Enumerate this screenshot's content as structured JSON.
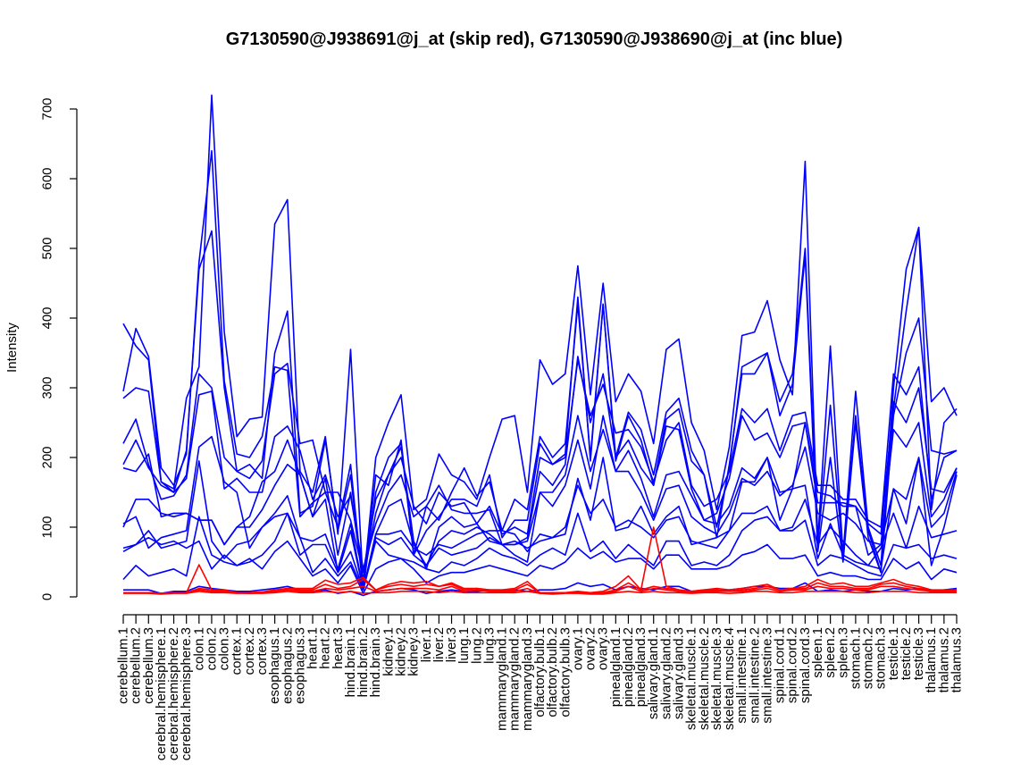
{
  "chart_data": {
    "type": "line",
    "title": "G7130590@J938691@j_at (skip red), G7130590@J938690@j_at (inc blue)",
    "xlabel": "",
    "ylabel": "Intensity",
    "ylim": [
      0,
      715
    ],
    "yticks": [
      0,
      100,
      200,
      300,
      400,
      500,
      600,
      700
    ],
    "grid": false,
    "legend": "none",
    "categories": [
      "cerebellum.1",
      "cerebellum.2",
      "cerebellum.3",
      "cerebral.hemisphere.1",
      "cerebral.hemisphere.2",
      "cerebral.hemisphere.3",
      "colon.1",
      "colon.2",
      "colon.3",
      "cortex.1",
      "cortex.2",
      "cortex.3",
      "esophagus.1",
      "esophagus.2",
      "esophagus.3",
      "heart.1",
      "heart.2",
      "heart.3",
      "hind.brain.1",
      "hind.brain.2",
      "hind.brain.3",
      "kidney.1",
      "kidney.2",
      "kidney.3",
      "liver.1",
      "liver.2",
      "liver.3",
      "lung.1",
      "lung.2",
      "lung.3",
      "mammarygland.1",
      "mammarygland.2",
      "mammarygland.3",
      "olfactory.bulb.1",
      "olfactory.bulb.2",
      "olfactory.bulb.3",
      "ovary.1",
      "ovary.2",
      "ovary.3",
      "pinealgland.1",
      "pinealgland.2",
      "pinealgland.3",
      "salivary.gland.1",
      "salivary.gland.2",
      "salivary.gland.3",
      "skeletal.muscle.1",
      "skeletal.muscle.2",
      "skeletal.muscle.3",
      "skeletal.muscle.4",
      "small.intestine.1",
      "small.intestine.2",
      "small.intestine.3",
      "spinal.cord.1",
      "spinal.cord.2",
      "spinal.cord.3",
      "spleen.1",
      "spleen.2",
      "spleen.3",
      "stomach.1",
      "stomach.2",
      "stomach.3",
      "testicle.1",
      "testicle.2",
      "testicle.3",
      "thalamus.1",
      "thalamus.2",
      "thalamus.3"
    ],
    "series": [
      {
        "color": "#0000ff",
        "values": [
          392,
          360,
          340,
          165,
          155,
          285,
          330,
          720,
          380,
          230,
          255,
          258,
          535,
          570,
          180,
          150,
          230,
          90,
          355,
          15,
          200,
          250,
          290,
          125,
          140,
          205,
          175,
          165,
          140,
          200,
          255,
          260,
          150,
          340,
          305,
          320,
          475,
          290,
          450,
          280,
          320,
          295,
          220,
          355,
          370,
          250,
          210,
          125,
          215,
          375,
          380,
          425,
          340,
          290,
          625,
          80,
          360,
          60,
          295,
          100,
          45,
          300,
          470,
          530,
          280,
          300,
          260
        ]
      },
      {
        "color": "#0000ff",
        "values": [
          295,
          385,
          345,
          185,
          160,
          205,
          480,
          640,
          310,
          205,
          200,
          230,
          330,
          325,
          115,
          135,
          150,
          100,
          190,
          10,
          175,
          160,
          225,
          60,
          130,
          110,
          150,
          185,
          145,
          165,
          95,
          140,
          125,
          230,
          200,
          220,
          420,
          200,
          420,
          200,
          265,
          240,
          175,
          265,
          285,
          210,
          175,
          100,
          185,
          330,
          340,
          350,
          280,
          320,
          500,
          75,
          275,
          55,
          260,
          95,
          35,
          270,
          410,
          530,
          125,
          250,
          270
        ]
      },
      {
        "color": "#0000ff",
        "values": [
          285,
          300,
          295,
          165,
          150,
          210,
          470,
          525,
          300,
          180,
          190,
          170,
          350,
          410,
          120,
          130,
          225,
          95,
          175,
          10,
          150,
          200,
          220,
          60,
          95,
          115,
          140,
          140,
          130,
          175,
          85,
          110,
          110,
          220,
          190,
          205,
          430,
          195,
          420,
          195,
          260,
          225,
          160,
          255,
          270,
          195,
          175,
          85,
          190,
          320,
          320,
          350,
          260,
          305,
          490,
          65,
          200,
          50,
          250,
          85,
          35,
          260,
          350,
          400,
          210,
          205,
          210
        ]
      },
      {
        "color": "#0000ff",
        "values": [
          220,
          255,
          190,
          140,
          145,
          175,
          320,
          300,
          200,
          180,
          170,
          195,
          320,
          335,
          220,
          225,
          150,
          150,
          110,
          35,
          140,
          175,
          200,
          130,
          105,
          150,
          130,
          135,
          105,
          130,
          90,
          100,
          90,
          200,
          190,
          200,
          340,
          260,
          305,
          235,
          240,
          215,
          165,
          225,
          250,
          160,
          130,
          140,
          180,
          270,
          250,
          270,
          210,
          260,
          265,
          160,
          160,
          140,
          140,
          110,
          100,
          320,
          290,
          330,
          140,
          200,
          210
        ]
      },
      {
        "color": "#0000ff",
        "values": [
          190,
          225,
          185,
          160,
          150,
          170,
          290,
          295,
          155,
          170,
          150,
          150,
          230,
          245,
          210,
          140,
          175,
          115,
          145,
          40,
          105,
          150,
          175,
          115,
          130,
          160,
          125,
          120,
          120,
          125,
          75,
          75,
          85,
          180,
          160,
          190,
          345,
          250,
          320,
          200,
          225,
          185,
          160,
          245,
          240,
          155,
          110,
          120,
          170,
          260,
          225,
          235,
          200,
          245,
          250,
          150,
          145,
          130,
          130,
          105,
          90,
          280,
          250,
          300,
          155,
          150,
          185
        ]
      },
      {
        "color": "#0000ff",
        "values": [
          185,
          180,
          205,
          115,
          120,
          120,
          110,
          110,
          75,
          100,
          115,
          165,
          180,
          225,
          175,
          115,
          170,
          60,
          150,
          25,
          120,
          175,
          215,
          80,
          40,
          100,
          115,
          100,
          105,
          80,
          75,
          75,
          80,
          150,
          150,
          175,
          260,
          180,
          240,
          180,
          210,
          170,
          115,
          175,
          180,
          145,
          110,
          105,
          130,
          185,
          170,
          200,
          150,
          155,
          250,
          135,
          135,
          135,
          130,
          60,
          75,
          240,
          215,
          250,
          115,
          140,
          185
        ]
      },
      {
        "color": "#0000ff",
        "values": [
          100,
          140,
          140,
          120,
          115,
          120,
          110,
          110,
          75,
          100,
          100,
          125,
          160,
          190,
          175,
          115,
          140,
          35,
          95,
          10,
          90,
          130,
          140,
          75,
          45,
          80,
          95,
          90,
          100,
          90,
          75,
          60,
          50,
          150,
          130,
          160,
          225,
          155,
          260,
          180,
          180,
          150,
          110,
          155,
          160,
          115,
          100,
          90,
          120,
          170,
          160,
          180,
          145,
          160,
          215,
          120,
          110,
          120,
          105,
          80,
          75,
          155,
          140,
          200,
          100,
          120,
          180
        ]
      },
      {
        "color": "#0000ff",
        "values": [
          65,
          75,
          95,
          70,
          75,
          80,
          195,
          80,
          55,
          75,
          80,
          100,
          120,
          145,
          85,
          80,
          90,
          40,
          105,
          10,
          90,
          90,
          95,
          70,
          60,
          75,
          70,
          80,
          90,
          95,
          95,
          90,
          65,
          90,
          85,
          100,
          160,
          120,
          140,
          100,
          110,
          100,
          85,
          110,
          115,
          80,
          75,
          70,
          95,
          120,
          120,
          130,
          95,
          100,
          140,
          75,
          100,
          80,
          60,
          45,
          70,
          120,
          70,
          130,
          85,
          90,
          95
        ]
      },
      {
        "color": "#0000ff",
        "values": [
          105,
          115,
          70,
          85,
          90,
          95,
          215,
          230,
          165,
          150,
          70,
          100,
          115,
          120,
          60,
          75,
          75,
          35,
          65,
          10,
          85,
          75,
          85,
          60,
          45,
          70,
          60,
          65,
          70,
          85,
          75,
          80,
          70,
          80,
          85,
          90,
          170,
          110,
          200,
          95,
          100,
          130,
          90,
          115,
          130,
          75,
          80,
          85,
          95,
          165,
          165,
          200,
          110,
          155,
          160,
          55,
          105,
          60,
          50,
          45,
          40,
          155,
          105,
          200,
          45,
          100,
          175
        ]
      },
      {
        "color": "#0000ff",
        "values": [
          70,
          75,
          85,
          75,
          80,
          70,
          80,
          40,
          60,
          45,
          50,
          60,
          80,
          120,
          85,
          35,
          55,
          30,
          50,
          10,
          80,
          60,
          55,
          50,
          40,
          35,
          50,
          45,
          55,
          70,
          60,
          55,
          45,
          60,
          70,
          60,
          120,
          65,
          80,
          55,
          75,
          60,
          45,
          80,
          80,
          45,
          50,
          45,
          60,
          95,
          110,
          115,
          95,
          95,
          110,
          45,
          60,
          55,
          45,
          35,
          30,
          75,
          70,
          75,
          55,
          60,
          55
        ]
      },
      {
        "color": "#0000ff",
        "values": [
          25,
          45,
          30,
          35,
          40,
          30,
          115,
          60,
          50,
          45,
          55,
          40,
          65,
          80,
          55,
          30,
          40,
          20,
          45,
          5,
          40,
          50,
          55,
          40,
          20,
          30,
          35,
          35,
          40,
          45,
          40,
          35,
          30,
          45,
          40,
          50,
          70,
          55,
          65,
          50,
          55,
          55,
          40,
          60,
          60,
          40,
          40,
          40,
          45,
          60,
          65,
          75,
          55,
          55,
          60,
          30,
          35,
          30,
          30,
          25,
          25,
          55,
          40,
          50,
          25,
          40,
          35
        ]
      },
      {
        "color": "#0000ff",
        "values": [
          10,
          10,
          10,
          5,
          8,
          8,
          15,
          12,
          10,
          8,
          8,
          10,
          12,
          15,
          10,
          8,
          10,
          5,
          8,
          2,
          8,
          10,
          12,
          10,
          5,
          8,
          10,
          8,
          8,
          10,
          8,
          10,
          8,
          10,
          10,
          12,
          20,
          15,
          18,
          10,
          15,
          12,
          10,
          15,
          15,
          8,
          8,
          8,
          10,
          12,
          15,
          15,
          12,
          12,
          20,
          8,
          10,
          8,
          10,
          8,
          8,
          12,
          10,
          12,
          8,
          10,
          12
        ]
      },
      {
        "color": "#ff0000",
        "values": [
          6,
          6,
          6,
          5,
          6,
          6,
          46,
          10,
          10,
          6,
          6,
          7,
          10,
          12,
          12,
          12,
          24,
          18,
          20,
          28,
          10,
          18,
          22,
          20,
          22,
          15,
          20,
          12,
          12,
          10,
          10,
          12,
          22,
          6,
          6,
          6,
          8,
          6,
          8,
          15,
          30,
          10,
          100,
          15,
          10,
          8,
          10,
          12,
          10,
          12,
          15,
          18,
          10,
          12,
          15,
          25,
          18,
          20,
          15,
          15,
          20,
          25,
          18,
          15,
          10,
          10,
          10
        ]
      },
      {
        "color": "#ff0000",
        "values": [
          6,
          6,
          6,
          5,
          6,
          6,
          12,
          10,
          8,
          6,
          6,
          7,
          8,
          10,
          10,
          10,
          18,
          12,
          15,
          25,
          10,
          15,
          18,
          15,
          18,
          15,
          18,
          10,
          12,
          10,
          10,
          10,
          18,
          6,
          6,
          6,
          6,
          5,
          6,
          10,
          20,
          10,
          15,
          12,
          10,
          8,
          10,
          10,
          8,
          10,
          12,
          15,
          10,
          12,
          12,
          20,
          15,
          15,
          12,
          12,
          18,
          20,
          15,
          12,
          10,
          8,
          10
        ]
      },
      {
        "color": "#ff0000",
        "values": [
          6,
          6,
          6,
          5,
          6,
          6,
          10,
          8,
          8,
          6,
          5,
          6,
          8,
          10,
          8,
          8,
          12,
          10,
          12,
          15,
          8,
          10,
          12,
          12,
          12,
          10,
          15,
          8,
          10,
          8,
          8,
          8,
          12,
          5,
          5,
          6,
          6,
          5,
          5,
          8,
          15,
          8,
          12,
          10,
          8,
          6,
          8,
          8,
          8,
          8,
          10,
          12,
          8,
          10,
          10,
          15,
          12,
          12,
          10,
          10,
          15,
          15,
          12,
          10,
          8,
          8,
          8
        ]
      },
      {
        "color": "#ff0000",
        "values": [
          5,
          5,
          5,
          4,
          5,
          5,
          8,
          6,
          6,
          5,
          5,
          5,
          6,
          8,
          6,
          6,
          8,
          6,
          8,
          5,
          6,
          6,
          8,
          8,
          8,
          6,
          8,
          6,
          6,
          6,
          6,
          6,
          8,
          5,
          4,
          5,
          5,
          4,
          4,
          6,
          8,
          6,
          8,
          6,
          6,
          5,
          6,
          6,
          5,
          6,
          8,
          8,
          6,
          6,
          8,
          8,
          8,
          8,
          6,
          6,
          8,
          8,
          8,
          6,
          6,
          6,
          6
        ]
      }
    ]
  }
}
